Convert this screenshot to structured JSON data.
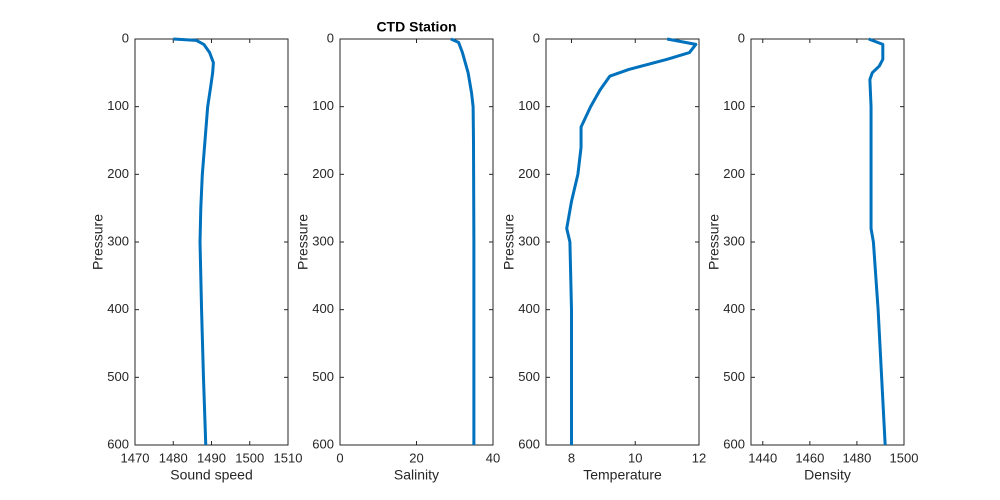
{
  "chart_data": [
    {
      "type": "line",
      "xlabel": "Sound speed",
      "ylabel": "Pressure",
      "color": "#0072bd",
      "y_reversed": true,
      "xlim": [
        1470,
        1510
      ],
      "xticks": [
        1470,
        1480,
        1490,
        1500,
        1510
      ],
      "ylim": [
        0,
        600
      ],
      "yticks": [
        0,
        100,
        200,
        300,
        400,
        500,
        600
      ],
      "x": [
        1480,
        1486,
        1488,
        1489.5,
        1490.5,
        1490.3,
        1489.8,
        1489,
        1488.3,
        1487.6,
        1487.2,
        1487,
        1487.4,
        1487.9,
        1488.5
      ],
      "y": [
        0,
        2,
        8,
        20,
        35,
        50,
        70,
        100,
        150,
        200,
        250,
        300,
        400,
        500,
        600
      ]
    },
    {
      "type": "line",
      "title": "CTD Station",
      "xlabel": "Salinity",
      "ylabel": "Pressure",
      "color": "#0072bd",
      "y_reversed": true,
      "xlim": [
        0,
        40
      ],
      "xticks": [
        0,
        20,
        40
      ],
      "ylim": [
        0,
        600
      ],
      "yticks": [
        0,
        100,
        200,
        300,
        400,
        500,
        600
      ],
      "x": [
        29,
        31,
        32,
        33.5,
        34.4,
        34.8,
        34.9,
        35,
        35,
        35
      ],
      "y": [
        0,
        5,
        20,
        50,
        80,
        100,
        150,
        300,
        450,
        600
      ]
    },
    {
      "type": "line",
      "xlabel": "Temperature",
      "ylabel": "Pressure",
      "color": "#0072bd",
      "y_reversed": true,
      "xlim": [
        7.2,
        12
      ],
      "xticks": [
        8,
        10,
        12
      ],
      "ylim": [
        0,
        600
      ],
      "yticks": [
        0,
        100,
        200,
        300,
        400,
        500,
        600
      ],
      "x": [
        11,
        11.9,
        11.7,
        11,
        9.8,
        9.2,
        8.9,
        8.6,
        8.3,
        8.3,
        8.2,
        8,
        7.85,
        7.95,
        8,
        8,
        8
      ],
      "y": [
        0,
        8,
        20,
        30,
        45,
        55,
        75,
        100,
        130,
        160,
        200,
        240,
        280,
        300,
        400,
        500,
        600
      ]
    },
    {
      "type": "line",
      "xlabel": "Density",
      "ylabel": "Pressure",
      "color": "#0072bd",
      "y_reversed": true,
      "xlim": [
        1435,
        1500
      ],
      "xticks": [
        1440,
        1460,
        1480,
        1500
      ],
      "ylim": [
        0,
        600
      ],
      "yticks": [
        0,
        100,
        200,
        300,
        400,
        500,
        600
      ],
      "x": [
        1485,
        1491,
        1491,
        1489.5,
        1486.5,
        1485.5,
        1486,
        1486,
        1486,
        1487,
        1489,
        1490.5,
        1492
      ],
      "y": [
        0,
        8,
        30,
        40,
        50,
        60,
        100,
        200,
        280,
        300,
        400,
        500,
        600
      ]
    }
  ]
}
